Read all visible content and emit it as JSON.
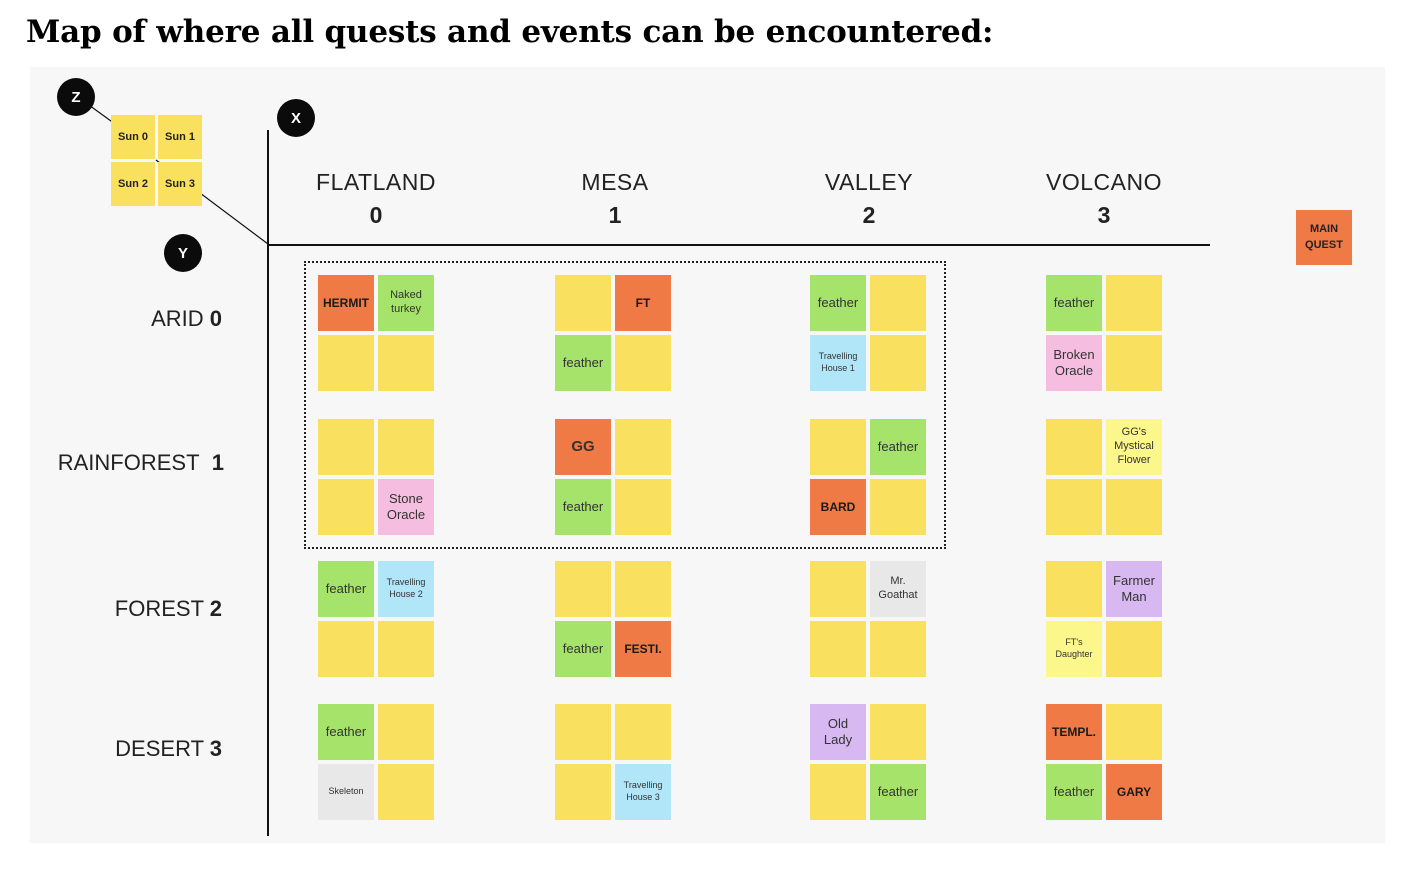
{
  "title": "Map of where all quests and events can be encountered:",
  "colors": {
    "empty": "#fae05f",
    "feather": "#a6e36a",
    "quest": "#f07a46",
    "travelling_house": "#b0e6f8",
    "oracle": "#f5bde0",
    "character": "#d7b8f0",
    "grey": "#e8e8e8",
    "flower": "#fcf78a"
  },
  "axes": {
    "z": "Z",
    "x": "X",
    "y": "Y"
  },
  "legend": {
    "sun0": "Sun 0",
    "sun1": "Sun 1",
    "sun2": "Sun 2",
    "sun3": "Sun 3"
  },
  "columns": [
    {
      "name": "FLATLAND",
      "num": "0"
    },
    {
      "name": "MESA",
      "num": "1"
    },
    {
      "name": "VALLEY",
      "num": "2"
    },
    {
      "name": "VOLCANO",
      "num": "3"
    }
  ],
  "rows": [
    {
      "name": "ARID",
      "num": "0"
    },
    {
      "name": "RAINFOREST",
      "num": "1"
    },
    {
      "name": "FOREST",
      "num": "2"
    },
    {
      "name": "DESERT",
      "num": "3"
    }
  ],
  "main_quest_label": "MAIN QUEST",
  "grid": [
    [
      [
        {
          "t": "HERMIT",
          "c": "quest",
          "s": "bold"
        },
        {
          "t": "Naked turkey",
          "c": "feather",
          "s": "mid"
        },
        {
          "t": "",
          "c": "empty"
        },
        {
          "t": "",
          "c": "empty"
        }
      ],
      [
        {
          "t": "",
          "c": "empty"
        },
        {
          "t": "FT",
          "c": "quest",
          "s": "bold"
        },
        {
          "t": "feather",
          "c": "feather"
        },
        {
          "t": "",
          "c": "empty"
        }
      ],
      [
        {
          "t": "feather",
          "c": "feather"
        },
        {
          "t": "",
          "c": "empty"
        },
        {
          "t": "Travelling House 1",
          "c": "travelling_house",
          "s": "small"
        },
        {
          "t": "",
          "c": "empty"
        }
      ],
      [
        {
          "t": "feather",
          "c": "feather"
        },
        {
          "t": "",
          "c": "empty"
        },
        {
          "t": "Broken Oracle",
          "c": "oracle"
        },
        {
          "t": "",
          "c": "empty"
        }
      ]
    ],
    [
      [
        {
          "t": "",
          "c": "empty"
        },
        {
          "t": "",
          "c": "empty"
        },
        {
          "t": "",
          "c": "empty"
        },
        {
          "t": "Stone Oracle",
          "c": "oracle"
        }
      ],
      [
        {
          "t": "GG",
          "c": "quest",
          "s": "big"
        },
        {
          "t": "",
          "c": "empty"
        },
        {
          "t": "feather",
          "c": "feather"
        },
        {
          "t": "",
          "c": "empty"
        }
      ],
      [
        {
          "t": "",
          "c": "empty"
        },
        {
          "t": "feather",
          "c": "feather"
        },
        {
          "t": "BARD",
          "c": "quest",
          "s": "bold"
        },
        {
          "t": "",
          "c": "empty"
        }
      ],
      [
        {
          "t": "",
          "c": "empty"
        },
        {
          "t": "GG's Mystical Flower",
          "c": "flower",
          "s": "mid"
        },
        {
          "t": "",
          "c": "empty"
        },
        {
          "t": "",
          "c": "empty"
        }
      ]
    ],
    [
      [
        {
          "t": "feather",
          "c": "feather"
        },
        {
          "t": "Travelling House 2",
          "c": "travelling_house",
          "s": "small"
        },
        {
          "t": "",
          "c": "empty"
        },
        {
          "t": "",
          "c": "empty"
        }
      ],
      [
        {
          "t": "",
          "c": "empty"
        },
        {
          "t": "",
          "c": "empty"
        },
        {
          "t": "feather",
          "c": "feather"
        },
        {
          "t": "FESTI.",
          "c": "quest",
          "s": "bold"
        }
      ],
      [
        {
          "t": "",
          "c": "empty"
        },
        {
          "t": "Mr. Goathat",
          "c": "grey",
          "s": "mid"
        },
        {
          "t": "",
          "c": "empty"
        },
        {
          "t": "",
          "c": "empty"
        }
      ],
      [
        {
          "t": "",
          "c": "empty"
        },
        {
          "t": "Farmer Man",
          "c": "character"
        },
        {
          "t": "FT's Daughter",
          "c": "flower",
          "s": "small"
        },
        {
          "t": "",
          "c": "empty"
        }
      ]
    ],
    [
      [
        {
          "t": "feather",
          "c": "feather"
        },
        {
          "t": "",
          "c": "empty"
        },
        {
          "t": "Skeleton",
          "c": "grey",
          "s": "small"
        },
        {
          "t": "",
          "c": "empty"
        }
      ],
      [
        {
          "t": "",
          "c": "empty"
        },
        {
          "t": "",
          "c": "empty"
        },
        {
          "t": "",
          "c": "empty"
        },
        {
          "t": "Travelling House 3",
          "c": "travelling_house",
          "s": "small"
        }
      ],
      [
        {
          "t": "Old Lady",
          "c": "character"
        },
        {
          "t": "",
          "c": "empty"
        },
        {
          "t": "",
          "c": "empty"
        },
        {
          "t": "feather",
          "c": "feather"
        }
      ],
      [
        {
          "t": "TEMPL.",
          "c": "quest",
          "s": "bold"
        },
        {
          "t": "",
          "c": "empty"
        },
        {
          "t": "feather",
          "c": "feather"
        },
        {
          "t": "GARY",
          "c": "quest",
          "s": "bold"
        }
      ]
    ]
  ]
}
